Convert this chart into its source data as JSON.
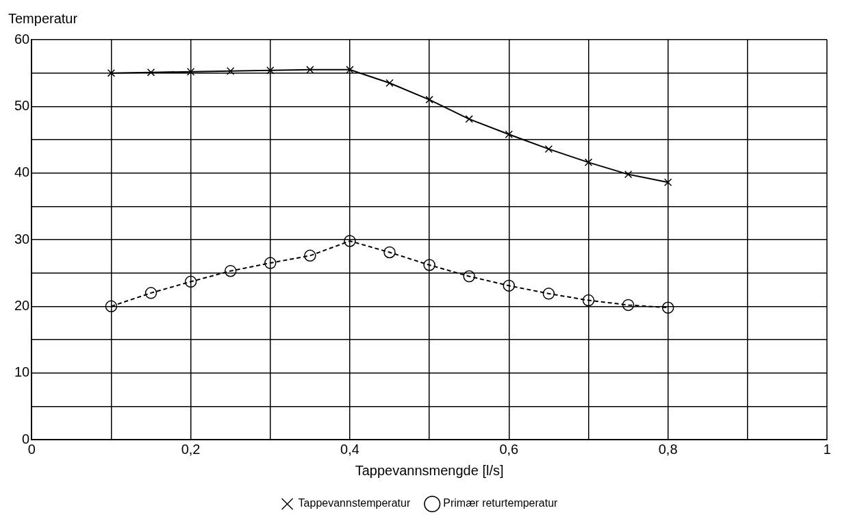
{
  "chart_data": {
    "type": "line",
    "xlabel": "Tappevannsmengde [l/s]",
    "ylabel": "Temperatur",
    "x": [
      0.1,
      0.15,
      0.2,
      0.25,
      0.3,
      0.35,
      0.4,
      0.45,
      0.5,
      0.55,
      0.6,
      0.65,
      0.7,
      0.75,
      0.8
    ],
    "series": [
      {
        "name": "Tappevannstemperatur",
        "color": "#000000",
        "marker": "cross",
        "line_style": "solid",
        "values": [
          55,
          55.1,
          55.2,
          55.3,
          55.4,
          55.5,
          55.5,
          53.5,
          51,
          48.1,
          45.8,
          43.6,
          41.6,
          39.8,
          38.6
        ]
      },
      {
        "name": "Primær returtemperatur",
        "color": "#000000",
        "marker": "circle",
        "line_style": "dashed",
        "values": [
          20,
          22,
          23.7,
          25.3,
          26.5,
          27.6,
          29.8,
          28.1,
          26.2,
          24.5,
          23.1,
          21.9,
          20.9,
          20.2,
          19.8
        ]
      }
    ],
    "xlim": [
      0,
      1
    ],
    "xticks": [
      0,
      {
        "value": 0.1,
        "label": null
      },
      {
        "value": 0.2,
        "label": "0,2"
      },
      {
        "value": 0.3,
        "label": null
      },
      {
        "value": 0.4,
        "label": "0,4"
      },
      {
        "value": 0.5,
        "label": null
      },
      {
        "value": 0.6,
        "label": "0,6"
      },
      {
        "value": 0.7,
        "label": null
      },
      {
        "value": 0.8,
        "label": "0,8"
      },
      {
        "value": 0.9,
        "label": null
      },
      1
    ],
    "ylim": [
      0,
      60
    ],
    "yticks": [
      0,
      {
        "value": 5,
        "label": null
      },
      10,
      {
        "value": 15,
        "label": null
      },
      20,
      {
        "value": 25,
        "label": null
      },
      30,
      {
        "value": 35,
        "label": null
      },
      40,
      {
        "value": 45,
        "label": null
      },
      50,
      {
        "value": 55,
        "label": null
      },
      60
    ],
    "grid": true,
    "legend": "bottom"
  }
}
